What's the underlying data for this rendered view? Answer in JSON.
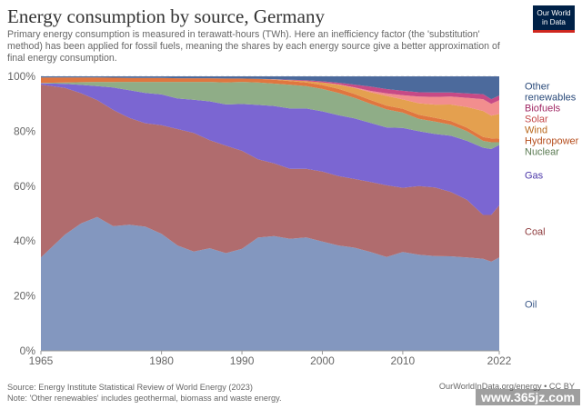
{
  "header": {
    "title": "Energy consumption by source, Germany",
    "subtitle": "Primary energy consumption is measured in terawatt-hours (TWh). Here an inefficiency factor (the 'substitution' method) has been applied for fossil fuels, meaning the shares by each energy source give a better approximation of final energy consumption.",
    "logo_line1": "Our World",
    "logo_line2": "in Data"
  },
  "footer": {
    "source": "Source: Energy Institute Statistical Review of World Energy (2023)",
    "note": "Note: 'Other renewables' includes geothermal, biomass and waste energy.",
    "credit": "OurWorldInData.org/energy • CC BY",
    "watermark": "www.365jz.com"
  },
  "colors": {
    "Oil": "#8397bf",
    "Coal": "#b06c6e",
    "Gas": "#7b66d2",
    "Nuclear": "#8fad87",
    "Hydropower": "#e0763f",
    "Wind": "#e4a04f",
    "Solar": "#f28e8e",
    "Biofuels": "#c74a86",
    "Other renewables": "#4c6a9c"
  },
  "label_colors": {
    "Oil": "#3d5a8a",
    "Coal": "#8e3b3d",
    "Gas": "#4a36a8",
    "Nuclear": "#5a7a52",
    "Hydropower": "#b54d1c",
    "Wind": "#b8671a",
    "Solar": "#c44848",
    "Biofuels": "#a02864",
    "Other renewables": "#2a4a7a"
  },
  "chart_data": {
    "type": "area",
    "stacked": true,
    "percent": true,
    "x": [
      1965,
      1968,
      1970,
      1972,
      1974,
      1976,
      1978,
      1980,
      1982,
      1984,
      1986,
      1988,
      1990,
      1992,
      1994,
      1996,
      1998,
      2000,
      2002,
      2004,
      2006,
      2008,
      2010,
      2012,
      2014,
      2016,
      2018,
      2020,
      2021,
      2022
    ],
    "series": [
      {
        "name": "Oil",
        "values": [
          34,
          42,
          46,
          48,
          44.5,
          45.5,
          45,
          42,
          38,
          36,
          37,
          35.5,
          37,
          40.5,
          41,
          40,
          40.5,
          39,
          38,
          37.5,
          36,
          34,
          35.5,
          35,
          34.5,
          34.5,
          34,
          33.5,
          32.5,
          34
        ]
      },
      {
        "name": "Coal",
        "values": [
          63,
          53,
          47,
          42,
          41.5,
          38.5,
          37.5,
          39,
          42,
          43,
          39,
          39,
          35.5,
          28,
          26,
          25,
          24.5,
          25,
          25,
          25,
          25.5,
          26,
          23,
          25,
          25,
          23.5,
          21,
          16,
          17,
          19
        ]
      },
      {
        "name": "Gas",
        "values": [
          0.5,
          1.5,
          3,
          5,
          8,
          10,
          11,
          11,
          11,
          12,
          14,
          15,
          17,
          19.5,
          20.5,
          21.5,
          21.5,
          21.5,
          22,
          22,
          21.5,
          21,
          21.5,
          20,
          19.5,
          20.5,
          21.5,
          24.5,
          24,
          22
        ]
      },
      {
        "name": "Nuclear",
        "values": [
          0.1,
          0.5,
          1,
          1.5,
          2,
          3,
          4,
          4.5,
          6,
          6.5,
          7,
          8,
          8,
          8,
          8,
          8.5,
          8,
          8,
          8,
          7.5,
          7,
          6.5,
          5.5,
          4.5,
          4.5,
          4,
          3.5,
          2.5,
          2.5,
          1
        ]
      },
      {
        "name": "Hydropower",
        "values": [
          2,
          1.8,
          1.7,
          1.6,
          1.5,
          1.4,
          1.4,
          1.4,
          1.3,
          1.3,
          1.3,
          1.4,
          1.2,
          1.3,
          1.4,
          1.3,
          1.3,
          1.4,
          1.5,
          1.4,
          1.4,
          1.4,
          1.4,
          1.5,
          1.4,
          1.4,
          1.3,
          1.4,
          1.4,
          1.3
        ]
      },
      {
        "name": "Wind",
        "values": [
          0,
          0,
          0,
          0,
          0,
          0,
          0,
          0,
          0,
          0,
          0,
          0,
          0,
          0,
          0.1,
          0.3,
          0.5,
          0.9,
          1.5,
          2.2,
          2.8,
          3.5,
          3.3,
          4.2,
          4.8,
          6,
          7.5,
          9.5,
          8.3,
          9
        ]
      },
      {
        "name": "Solar",
        "values": [
          0,
          0,
          0,
          0,
          0,
          0,
          0,
          0,
          0,
          0,
          0,
          0,
          0,
          0,
          0,
          0,
          0,
          0,
          0.1,
          0.2,
          0.5,
          0.9,
          1.5,
          2.4,
          2.8,
          2.9,
          3.4,
          4.3,
          4.3,
          5
        ]
      },
      {
        "name": "Biofuels",
        "values": [
          0,
          0,
          0,
          0,
          0,
          0,
          0,
          0,
          0,
          0,
          0,
          0,
          0,
          0,
          0.1,
          0.2,
          0.3,
          0.4,
          0.6,
          1,
          1.6,
          1.6,
          1.6,
          1.6,
          1.6,
          1.5,
          1.6,
          1.8,
          1.7,
          1.7
        ]
      },
      {
        "name": "Other renewables",
        "values": [
          0.4,
          0.4,
          0.4,
          0.4,
          0.5,
          0.6,
          0.6,
          0.6,
          0.7,
          0.7,
          0.7,
          0.8,
          0.8,
          0.9,
          1,
          1.2,
          1.4,
          1.8,
          2.3,
          3,
          3.7,
          4.6,
          5.2,
          5.8,
          5.9,
          5.9,
          6.2,
          6.5,
          8.3,
          7
        ]
      }
    ],
    "xticks": [
      1965,
      1980,
      1990,
      2000,
      2010,
      2022
    ],
    "ylim": [
      0,
      100
    ],
    "yticks": [
      "0%",
      "20%",
      "40%",
      "60%",
      "80%",
      "100%"
    ],
    "ytick_values": [
      0,
      20,
      40,
      60,
      80,
      100
    ],
    "legend_position": "right",
    "grid": true
  }
}
